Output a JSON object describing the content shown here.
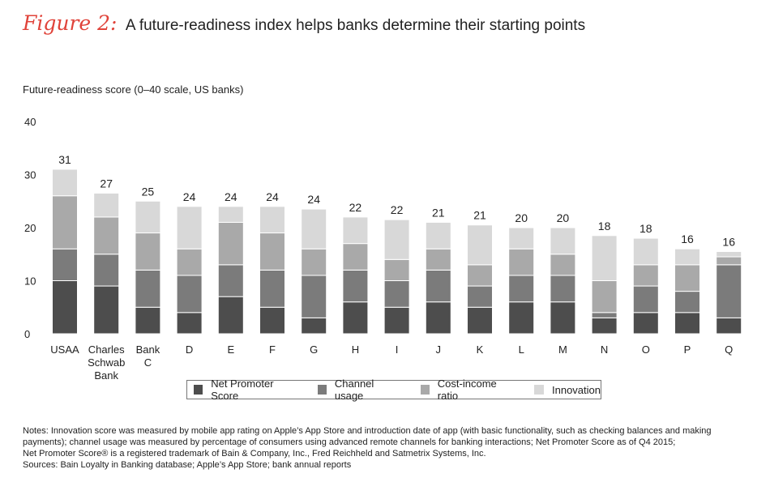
{
  "header": {
    "figure_label": "Figure 2:",
    "title": "A future-readiness index helps banks determine their starting points"
  },
  "chart_data": {
    "type": "bar",
    "stacked": true,
    "ylabel": "Future-readiness score (0–40 scale, US banks)",
    "ylim": [
      0,
      40
    ],
    "yticks": [
      0,
      10,
      20,
      30,
      40
    ],
    "grid": false,
    "legend_position": "bottom",
    "categories": [
      [
        "USAA"
      ],
      [
        "Charles",
        "Schwab",
        "Bank"
      ],
      [
        "Bank",
        "C"
      ],
      [
        "D"
      ],
      [
        "E"
      ],
      [
        "F"
      ],
      [
        "G"
      ],
      [
        "H"
      ],
      [
        "I"
      ],
      [
        "J"
      ],
      [
        "K"
      ],
      [
        "L"
      ],
      [
        "M"
      ],
      [
        "N"
      ],
      [
        "O"
      ],
      [
        "P"
      ],
      [
        "Q"
      ]
    ],
    "totals": [
      31,
      27,
      25,
      24,
      24,
      24,
      24,
      22,
      22,
      21,
      21,
      20,
      20,
      18,
      18,
      16,
      16
    ],
    "series": [
      {
        "name": "Net Promoter Score",
        "color": "#4d4d4d",
        "values": [
          10,
          9,
          5,
          4,
          7,
          5,
          3,
          6,
          5,
          6,
          5,
          6,
          6,
          3,
          4,
          4,
          3
        ]
      },
      {
        "name": "Channel usage",
        "color": "#7b7b7b",
        "values": [
          6,
          6,
          7,
          7,
          6,
          7,
          8,
          6,
          5,
          6,
          4,
          5,
          5,
          1,
          5,
          4,
          10
        ]
      },
      {
        "name": "Cost-income ratio",
        "color": "#a9a9a9",
        "values": [
          10,
          7,
          7,
          5,
          8,
          7,
          5,
          5,
          4,
          4,
          4,
          5,
          4,
          6,
          4,
          5,
          1.5
        ]
      },
      {
        "name": "Innovation",
        "color": "#d8d8d8",
        "values": [
          5,
          4.5,
          6,
          8,
          3,
          5,
          7.5,
          5,
          7.5,
          5,
          7.5,
          4,
          5,
          8.5,
          5,
          3,
          1
        ]
      }
    ]
  },
  "notes": [
    "Notes: Innovation score was measured by mobile app rating on Apple’s App Store and introduction date of app (with basic functionality, such as checking balances and making payments); channel usage was measured by percentage of consumers using advanced remote channels for banking interactions; Net Promoter Score as of Q4 2015;",
    "Net Promoter Score® is a registered trademark of Bain & Company, Inc., Fred Reichheld and Satmetrix Systems, Inc.",
    "Sources: Bain Loyalty in Banking database; Apple’s App Store; bank annual reports"
  ]
}
